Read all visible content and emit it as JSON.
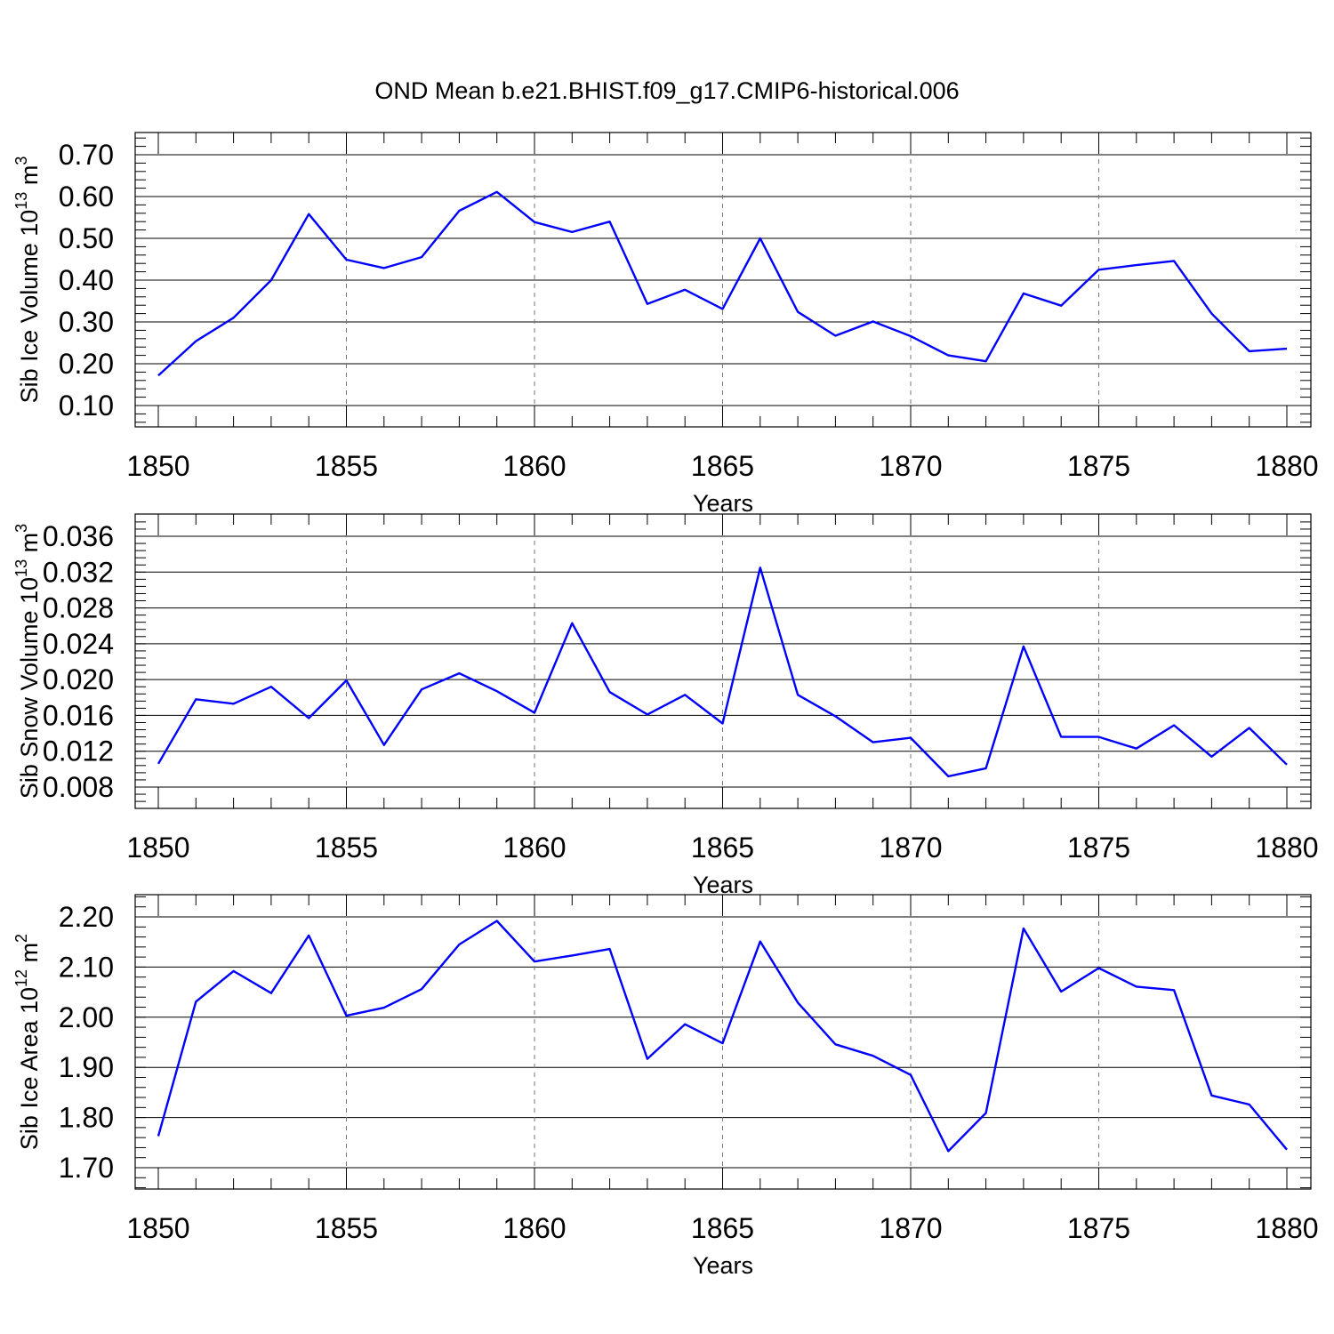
{
  "title": "OND Mean b.e21.BHIST.f09_g17.CMIP6-historical.006",
  "colors": {
    "series": "#0000ff",
    "frame": "#000000",
    "grid": "#777777"
  },
  "chart_data": [
    {
      "type": "line",
      "ylabel": "Sib Ice Volume 10",
      "ylabel_exp": "13",
      "ylabel_unit": " m",
      "ylabel_unit_exp": "3",
      "xlabel": "Years",
      "xlim": [
        1850,
        1880
      ],
      "ylim": [
        0.1,
        0.7
      ],
      "yticks": [
        0.1,
        0.2,
        0.3,
        0.4,
        0.5,
        0.6,
        0.7
      ],
      "ytick_labels": [
        "0.10",
        "0.20",
        "0.30",
        "0.40",
        "0.50",
        "0.60",
        "0.70"
      ],
      "xticks": [
        1850,
        1855,
        1860,
        1865,
        1870,
        1875,
        1880
      ],
      "xtick_labels": [
        "1850",
        "1855",
        "1860",
        "1865",
        "1870",
        "1875",
        "1880"
      ],
      "x": [
        1850,
        1851,
        1852,
        1853,
        1854,
        1855,
        1856,
        1857,
        1858,
        1859,
        1860,
        1861,
        1862,
        1863,
        1864,
        1865,
        1866,
        1867,
        1868,
        1869,
        1870,
        1871,
        1872,
        1873,
        1874,
        1875,
        1876,
        1877,
        1878,
        1879,
        1880
      ],
      "y": [
        0.172,
        0.254,
        0.31,
        0.4,
        0.558,
        0.449,
        0.429,
        0.455,
        0.566,
        0.611,
        0.539,
        0.515,
        0.54,
        0.343,
        0.377,
        0.331,
        0.5,
        0.324,
        0.267,
        0.301,
        0.266,
        0.22,
        0.206,
        0.368,
        0.339,
        0.425,
        0.436,
        0.446,
        0.32,
        0.23,
        0.236
      ]
    },
    {
      "type": "line",
      "ylabel": "Sib Snow Volume 10",
      "ylabel_exp": "13",
      "ylabel_unit": " m",
      "ylabel_unit_exp": "3",
      "xlabel": "Years",
      "xlim": [
        1850,
        1880
      ],
      "ylim": [
        0.008,
        0.036
      ],
      "yticks": [
        0.008,
        0.012,
        0.016,
        0.02,
        0.024,
        0.028,
        0.032,
        0.036
      ],
      "ytick_labels": [
        "0.008",
        "0.012",
        "0.016",
        "0.020",
        "0.024",
        "0.028",
        "0.032",
        "0.036"
      ],
      "xticks": [
        1850,
        1855,
        1860,
        1865,
        1870,
        1875,
        1880
      ],
      "xtick_labels": [
        "1850",
        "1855",
        "1860",
        "1865",
        "1870",
        "1875",
        "1880"
      ],
      "x": [
        1850,
        1851,
        1852,
        1853,
        1854,
        1855,
        1856,
        1857,
        1858,
        1859,
        1860,
        1861,
        1862,
        1863,
        1864,
        1865,
        1866,
        1867,
        1868,
        1869,
        1870,
        1871,
        1872,
        1873,
        1874,
        1875,
        1876,
        1877,
        1878,
        1879,
        1880
      ],
      "y": [
        0.0106,
        0.0178,
        0.0173,
        0.0192,
        0.0157,
        0.0199,
        0.0127,
        0.0189,
        0.0207,
        0.0187,
        0.0163,
        0.0263,
        0.0186,
        0.0161,
        0.0183,
        0.0151,
        0.0325,
        0.0183,
        0.0159,
        0.013,
        0.0135,
        0.0092,
        0.0101,
        0.0237,
        0.0136,
        0.0136,
        0.0123,
        0.0149,
        0.0114,
        0.0146,
        0.0105
      ]
    },
    {
      "type": "line",
      "ylabel": "Sib Ice Area 10",
      "ylabel_exp": "12",
      "ylabel_unit": " m",
      "ylabel_unit_exp": "2",
      "xlabel": "Years",
      "xlim": [
        1850,
        1880
      ],
      "ylim": [
        1.7,
        2.2
      ],
      "yticks": [
        1.7,
        1.8,
        1.9,
        2.0,
        2.1,
        2.2
      ],
      "ytick_labels": [
        "1.70",
        "1.80",
        "1.90",
        "2.00",
        "2.10",
        "2.20"
      ],
      "xticks": [
        1850,
        1855,
        1860,
        1865,
        1870,
        1875,
        1880
      ],
      "xtick_labels": [
        "1850",
        "1855",
        "1860",
        "1865",
        "1870",
        "1875",
        "1880"
      ],
      "x": [
        1850,
        1851,
        1852,
        1853,
        1854,
        1855,
        1856,
        1857,
        1858,
        1859,
        1860,
        1861,
        1862,
        1863,
        1864,
        1865,
        1866,
        1867,
        1868,
        1869,
        1870,
        1871,
        1872,
        1873,
        1874,
        1875,
        1876,
        1877,
        1878,
        1879,
        1880
      ],
      "y": [
        1.763,
        2.031,
        2.092,
        2.048,
        2.163,
        2.003,
        2.019,
        2.056,
        2.145,
        2.192,
        2.111,
        2.123,
        2.136,
        1.917,
        1.986,
        1.948,
        2.151,
        2.029,
        1.946,
        1.923,
        1.885,
        1.733,
        1.809,
        2.177,
        2.051,
        2.098,
        2.061,
        2.054,
        1.844,
        1.826,
        1.736
      ]
    }
  ]
}
